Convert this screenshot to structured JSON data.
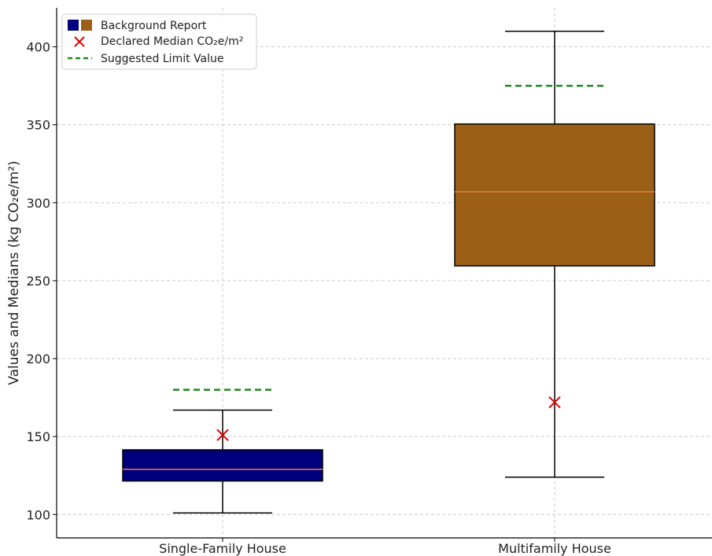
{
  "chart_data": {
    "type": "box",
    "title": "",
    "xlabel": "",
    "ylabel": "Values and Medians (kg CO₂e/m²)",
    "ylim": [
      85,
      425
    ],
    "yticks": [
      100,
      150,
      200,
      250,
      300,
      350,
      400
    ],
    "grid": true,
    "legend_position": "top-left",
    "categories": [
      "Single-Family House",
      "Multifamily House"
    ],
    "boxes": [
      {
        "category": "Single-Family House",
        "whisker_low": 101,
        "q1": 121.5,
        "median": 129,
        "q3": 141.5,
        "whisker_high": 167,
        "declared_median": 151,
        "suggested_limit": 180,
        "fill_color": "#00007f"
      },
      {
        "category": "Multifamily House",
        "whisker_low": 124,
        "q1": 259.5,
        "median": 307,
        "q3": 350.5,
        "whisker_high": 410,
        "declared_median": 172,
        "suggested_limit": 375,
        "fill_color": "#9b5f16"
      }
    ],
    "legend": [
      {
        "label": "Background Report",
        "marker": "boxes"
      },
      {
        "label": "Declared Median CO₂e/m²",
        "marker": "red-x"
      },
      {
        "label": "Suggested Limit Value",
        "marker": "green-dashed-line"
      }
    ],
    "colors": {
      "median_line": "#e8803a",
      "declared_marker": "#e60000",
      "limit_line": "#1a8a1a",
      "grid": "#cccccc"
    }
  }
}
